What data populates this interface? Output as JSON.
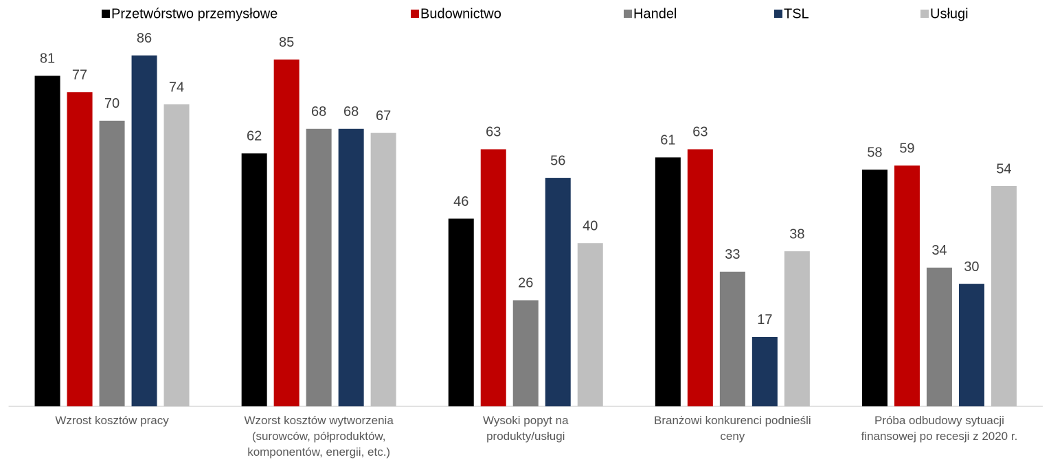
{
  "chart_data": {
    "type": "bar",
    "categories": [
      "Wzrost kosztów pracy",
      "Wzorst kosztów wytworzenia\n(surowców, półproduktów,\nkomponentów, energii, etc.)",
      "Wysoki popyt na\nprodukty/usługi",
      "Branżowi konkurenci podnieśli\nceny",
      "Próba odbudowy sytuacji\nfinansowej po recesji z 2020 r."
    ],
    "series": [
      {
        "name": "Przetwórstwo przemysłowe",
        "color": "#000000",
        "values": [
          81,
          62,
          46,
          61,
          58
        ]
      },
      {
        "name": "Budownictwo",
        "color": "#c00000",
        "values": [
          77,
          85,
          63,
          63,
          59
        ]
      },
      {
        "name": "Handel",
        "color": "#7f7f7f",
        "values": [
          70,
          68,
          26,
          33,
          34
        ]
      },
      {
        "name": "TSL",
        "color": "#1b365d",
        "values": [
          86,
          68,
          56,
          17,
          30
        ]
      },
      {
        "name": "Usługi",
        "color": "#bfbfbf",
        "values": [
          74,
          67,
          40,
          38,
          54
        ]
      }
    ],
    "legend": "top"
  }
}
